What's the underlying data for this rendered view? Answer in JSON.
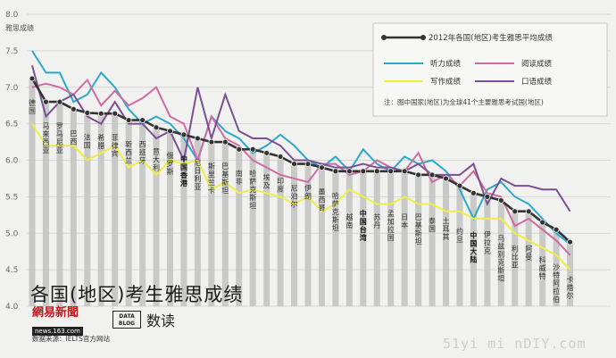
{
  "chart_data": {
    "type": "line",
    "ylabel": "雅思成绩",
    "ylim": [
      4.0,
      8.0
    ],
    "yticks": [
      "4.0",
      "4.5",
      "5.0",
      "5.5",
      "6.0",
      "6.5",
      "7.0",
      "7.5",
      "8.0"
    ],
    "categories": [
      "德国",
      "马来西亚",
      "罗马尼亚",
      "巴西",
      "法国",
      "希腊",
      "菲律宾",
      "新西兰",
      "西班牙",
      "意大利",
      "俄罗斯",
      "中国香港",
      "尼日利亚",
      "斯里兰卡",
      "巴基斯坦",
      "南非",
      "哈萨克斯坦",
      "埃及",
      "印度",
      "尼泊尔",
      "伊朗",
      "墨西哥",
      "哈萨克斯坦",
      "越南",
      "中国台湾",
      "苏丹",
      "孟加拉国",
      "日本",
      "巴基斯坦",
      "泰国",
      "土耳其",
      "约旦",
      "中国大陆",
      "伊拉克",
      "乌兹别克斯坦",
      "利比亚",
      "阿曼",
      "科威特",
      "沙特阿拉伯",
      "卡塔尔"
    ],
    "series": [
      {
        "name": "2012年各国(地区)考生雅思平均成绩",
        "color": "#333333",
        "values": [
          7.12,
          6.8,
          6.8,
          6.7,
          6.65,
          6.64,
          6.64,
          6.55,
          6.55,
          6.45,
          6.4,
          6.35,
          6.3,
          6.25,
          6.25,
          6.15,
          6.15,
          6.1,
          6.05,
          5.95,
          5.95,
          5.9,
          5.85,
          5.85,
          5.85,
          5.85,
          5.85,
          5.85,
          5.8,
          5.8,
          5.75,
          5.65,
          5.55,
          5.5,
          5.45,
          5.3,
          5.3,
          5.15,
          5.05,
          4.88
        ]
      },
      {
        "name": "听力成绩",
        "color": "#2ba9cc",
        "values": [
          7.5,
          7.2,
          7.2,
          6.8,
          6.9,
          7.2,
          7.0,
          6.7,
          6.5,
          6.6,
          6.5,
          6.3,
          6.0,
          6.6,
          6.4,
          6.3,
          6.1,
          6.2,
          6.35,
          6.2,
          6.0,
          5.9,
          6.05,
          5.85,
          6.15,
          5.95,
          5.85,
          6.05,
          5.95,
          6.0,
          5.85,
          5.6,
          5.2,
          5.6,
          5.7,
          5.5,
          5.4,
          5.2,
          5.0,
          4.85
        ]
      },
      {
        "name": "阅读成绩",
        "color": "#d06aa3",
        "values": [
          7.0,
          7.05,
          7.0,
          6.9,
          7.1,
          6.75,
          6.95,
          6.75,
          6.85,
          7.0,
          6.6,
          6.5,
          6.0,
          6.6,
          6.3,
          6.2,
          6.0,
          5.9,
          5.8,
          5.75,
          5.7,
          5.95,
          5.95,
          5.8,
          5.85,
          6.0,
          5.9,
          5.85,
          6.1,
          5.7,
          5.8,
          5.65,
          5.85,
          5.55,
          5.5,
          5.1,
          5.2,
          5.05,
          4.9,
          4.7
        ]
      },
      {
        "name": "写作成绩",
        "color": "#eeee44",
        "values": [
          6.5,
          6.2,
          6.2,
          6.2,
          6.0,
          6.1,
          6.2,
          5.9,
          6.0,
          5.8,
          6.0,
          5.95,
          6.0,
          5.6,
          5.7,
          5.55,
          5.6,
          5.55,
          5.5,
          5.4,
          5.5,
          5.3,
          5.4,
          5.6,
          5.5,
          5.4,
          5.4,
          5.5,
          5.4,
          5.4,
          5.3,
          5.3,
          5.2,
          5.2,
          5.2,
          5.0,
          4.9,
          4.8,
          4.7,
          4.5
        ]
      },
      {
        "name": "口语成绩",
        "color": "#7a4f94",
        "values": [
          7.3,
          6.6,
          6.8,
          6.9,
          6.6,
          6.5,
          6.8,
          6.5,
          6.5,
          6.3,
          6.4,
          6.0,
          7.0,
          6.3,
          6.9,
          6.4,
          6.3,
          6.3,
          6.2,
          6.0,
          6.0,
          5.95,
          5.9,
          5.9,
          5.95,
          5.9,
          5.9,
          5.85,
          5.95,
          5.8,
          5.8,
          5.8,
          5.95,
          5.4,
          5.75,
          5.65,
          5.65,
          5.6,
          5.6,
          5.3
        ]
      }
    ],
    "legend_placement": "top-right",
    "note": "注：图中国家(地区)为全球41个主要雅思考试国(地区)",
    "highlight": [
      "中国香港",
      "中国台湾",
      "中国大陆"
    ]
  },
  "page": {
    "title": "各国(地区)考生雅思成绩",
    "brand_main": "網易新聞",
    "brand_url": "news.163.com",
    "source": "数据来源：IELTS官方网站",
    "datablog_line1": "DATA",
    "datablog_line2": "BLOG",
    "shudu": "数读",
    "watermark": "51yi mi nDIY.com"
  }
}
